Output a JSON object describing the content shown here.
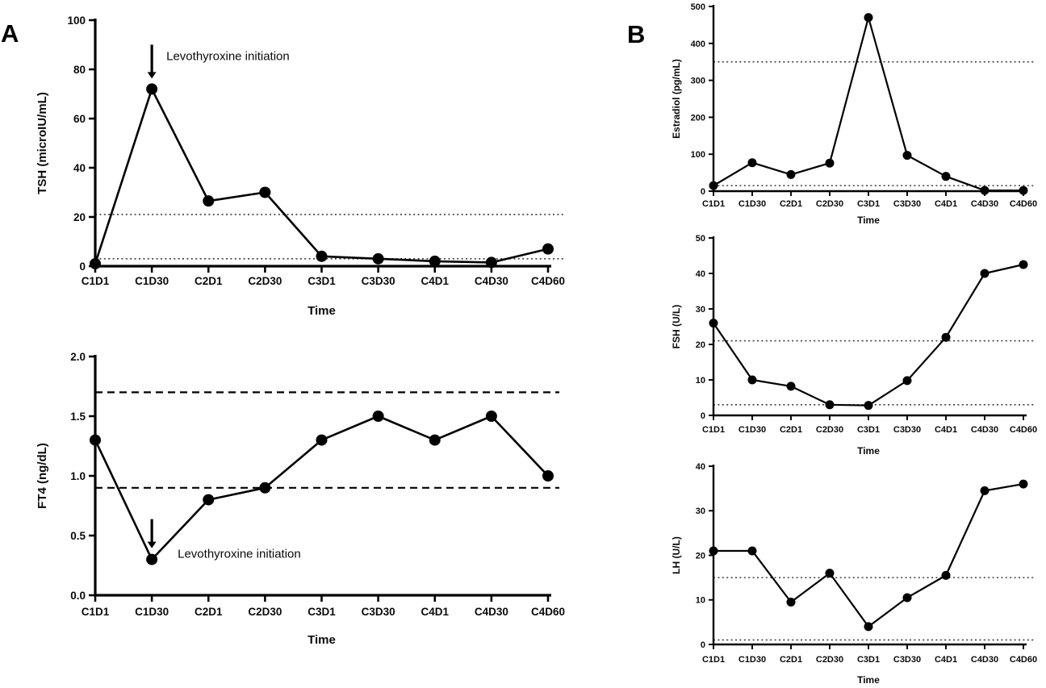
{
  "figure": {
    "panel_a_label": "A",
    "panel_b_label": "B"
  },
  "chart_data": [
    {
      "id": "tsh",
      "panel": "A",
      "type": "line",
      "title": "",
      "ylabel": "TSH (microIU/mL)",
      "xlabel": "Time",
      "categories": [
        "C1D1",
        "C1D30",
        "C2D1",
        "C2D30",
        "C3D1",
        "C3D30",
        "C4D1",
        "C4D30",
        "C4D60"
      ],
      "values": [
        1,
        72,
        26.5,
        30,
        4,
        3,
        2,
        1.5,
        7
      ],
      "ylim": [
        0,
        100
      ],
      "yticks": [
        0,
        20,
        40,
        60,
        80,
        100
      ],
      "ytick_labels": [
        "0",
        "20",
        "40",
        "60",
        "80",
        "100"
      ],
      "reference_lines": [
        {
          "y": 21,
          "style": "dotted"
        },
        {
          "y": 3,
          "style": "dotted"
        }
      ],
      "annotation": {
        "text": "Levothyroxine initiation",
        "category": "C1D30"
      },
      "grid": false,
      "legend": false,
      "line_color": "#000000",
      "marker": "filled-circle"
    },
    {
      "id": "ft4",
      "panel": "A",
      "type": "line",
      "title": "",
      "ylabel": "FT4 (ng/dL)",
      "xlabel": "Time",
      "categories": [
        "C1D1",
        "C1D30",
        "C2D1",
        "C2D30",
        "C3D1",
        "C3D30",
        "C4D1",
        "C4D30",
        "C4D60"
      ],
      "values": [
        1.3,
        0.3,
        0.8,
        0.9,
        1.3,
        1.5,
        1.3,
        1.5,
        1.0
      ],
      "ylim": [
        0,
        2.0
      ],
      "yticks": [
        0,
        0.5,
        1.0,
        1.5,
        2.0
      ],
      "ytick_labels": [
        "0.0",
        "0.5",
        "1.0",
        "1.5",
        "2.0"
      ],
      "reference_lines": [
        {
          "y": 1.7,
          "style": "dashed"
        },
        {
          "y": 0.9,
          "style": "dashed"
        }
      ],
      "annotation": {
        "text": "Levothyroxine initiation",
        "category": "C1D30"
      },
      "grid": false,
      "legend": false,
      "line_color": "#000000",
      "marker": "filled-circle"
    },
    {
      "id": "estradiol",
      "panel": "B",
      "type": "line",
      "title": "",
      "ylabel": "Estradiol (pg/mL)",
      "xlabel": "Time",
      "categories": [
        "C1D1",
        "C1D30",
        "C2D1",
        "C2D30",
        "C3D1",
        "C3D30",
        "C4D1",
        "C4D30",
        "C4D60"
      ],
      "values": [
        15,
        77,
        45,
        76,
        470,
        97,
        40,
        2,
        2
      ],
      "ylim": [
        0,
        500
      ],
      "yticks": [
        0,
        100,
        200,
        300,
        400,
        500
      ],
      "ytick_labels": [
        "0",
        "100",
        "200",
        "300",
        "400",
        "500"
      ],
      "reference_lines": [
        {
          "y": 350,
          "style": "dotted"
        },
        {
          "y": 15,
          "style": "dotted"
        }
      ],
      "annotation": null,
      "grid": false,
      "legend": false,
      "line_color": "#000000",
      "marker": "filled-circle"
    },
    {
      "id": "fsh",
      "panel": "B",
      "type": "line",
      "title": "",
      "ylabel": "FSH (U/L)",
      "xlabel": "Time",
      "categories": [
        "C1D1",
        "C1D30",
        "C2D1",
        "C2D30",
        "C3D1",
        "C3D30",
        "C4D1",
        "C4D30",
        "C4D60"
      ],
      "values": [
        26,
        10,
        8.2,
        3,
        2.8,
        9.8,
        22,
        40,
        42.5
      ],
      "ylim": [
        0,
        50
      ],
      "yticks": [
        0,
        10,
        20,
        30,
        40,
        50
      ],
      "ytick_labels": [
        "0",
        "10",
        "20",
        "30",
        "40",
        "50"
      ],
      "reference_lines": [
        {
          "y": 21,
          "style": "dotted"
        },
        {
          "y": 3,
          "style": "dotted"
        }
      ],
      "annotation": null,
      "grid": false,
      "legend": false,
      "line_color": "#000000",
      "marker": "filled-circle"
    },
    {
      "id": "lh",
      "panel": "B",
      "type": "line",
      "title": "",
      "ylabel": "LH (U/L)",
      "xlabel": "Time",
      "categories": [
        "C1D1",
        "C1D30",
        "C2D1",
        "C2D30",
        "C3D1",
        "C3D30",
        "C4D1",
        "C4D30",
        "C4D60"
      ],
      "values": [
        21,
        21,
        9.5,
        16,
        4,
        10.5,
        15.5,
        34.5,
        36
      ],
      "ylim": [
        0,
        40
      ],
      "yticks": [
        0,
        10,
        20,
        30,
        40
      ],
      "ytick_labels": [
        "0",
        "10",
        "20",
        "30",
        "40"
      ],
      "reference_lines": [
        {
          "y": 15,
          "style": "dotted"
        },
        {
          "y": 1,
          "style": "dotted"
        }
      ],
      "annotation": null,
      "grid": false,
      "legend": false,
      "line_color": "#000000",
      "marker": "filled-circle"
    }
  ]
}
